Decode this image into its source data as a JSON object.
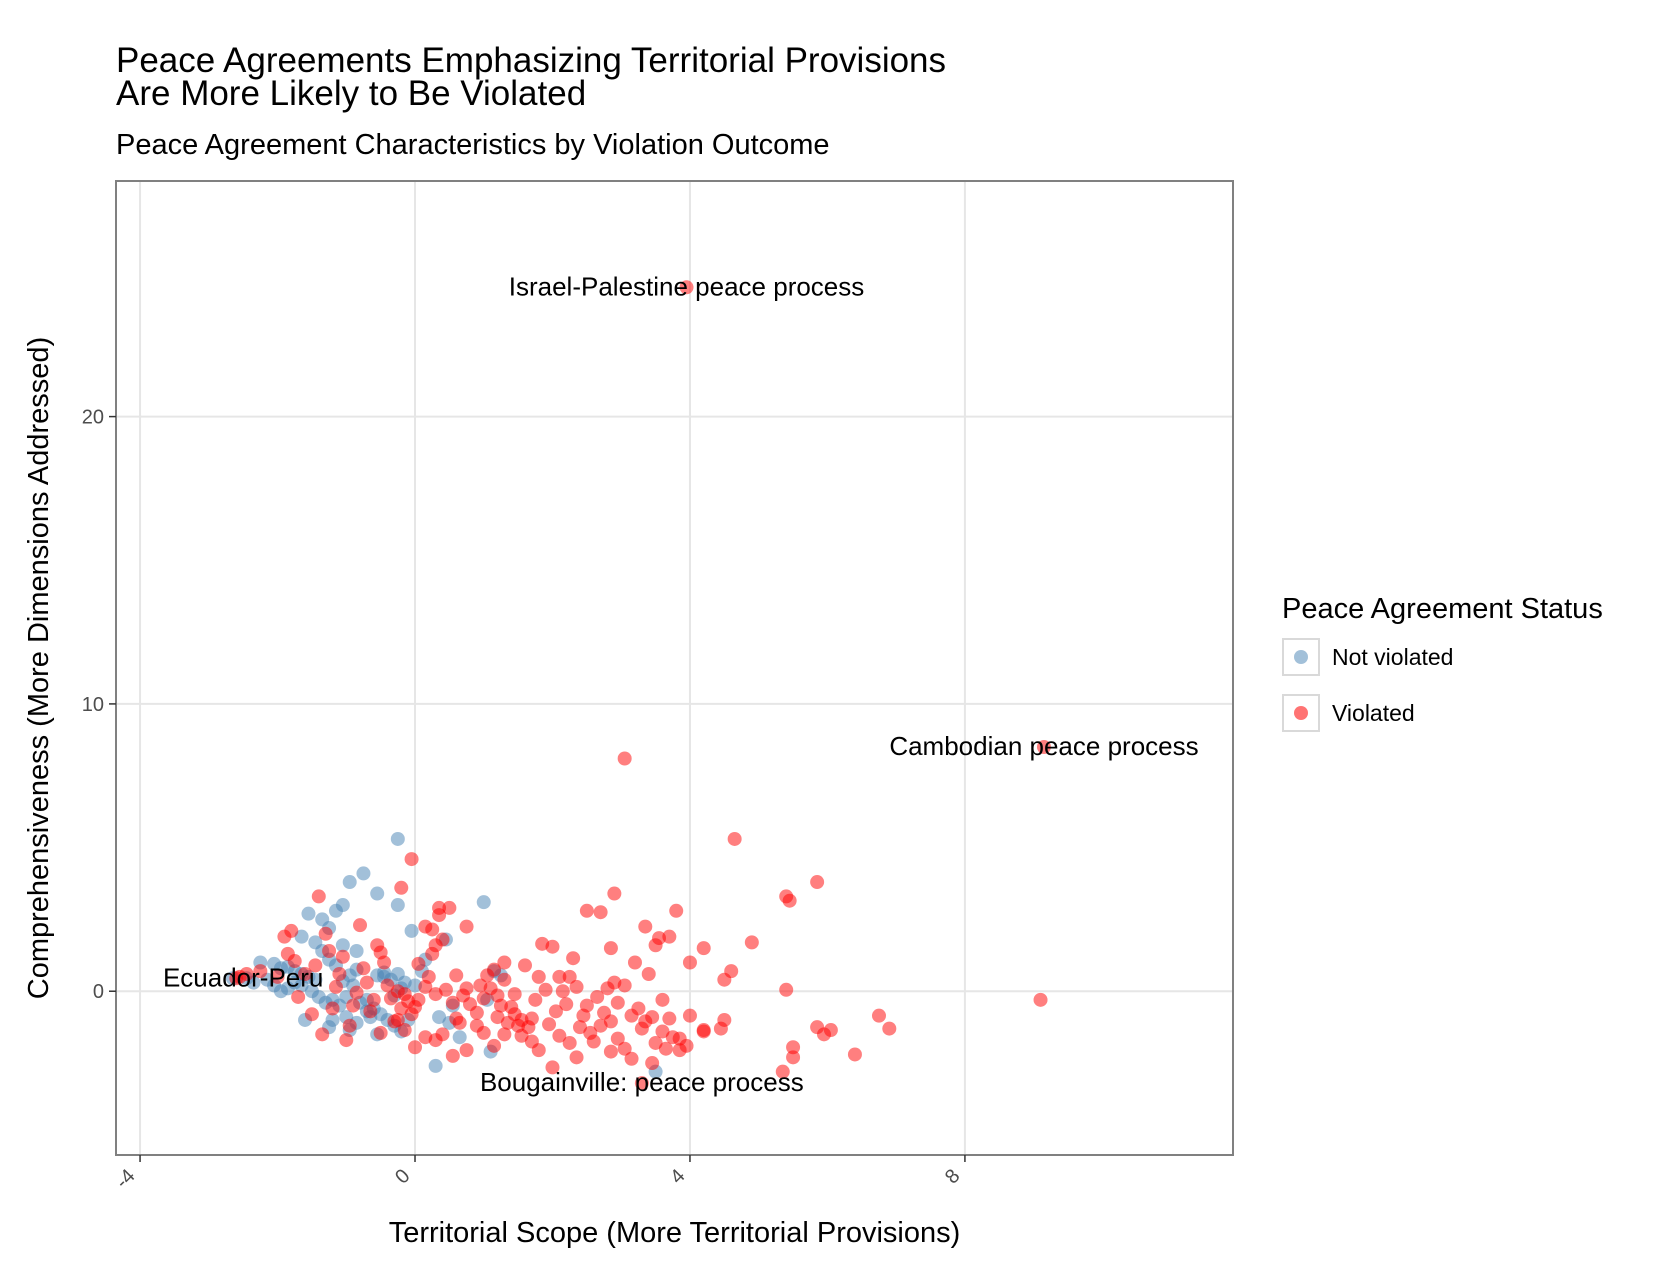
{
  "title_lines": [
    "Peace Agreements Emphasizing Territorial Provisions",
    "Are More Likely to Be Violated"
  ],
  "subtitle": "Peace Agreement Characteristics by Violation Outcome",
  "legend": {
    "title": "Peace Agreement Status",
    "items": [
      {
        "label": "Not violated",
        "color": "#4682B4"
      },
      {
        "label": "Violated",
        "color": "#FF0000"
      }
    ]
  },
  "chart_data": {
    "type": "scatter",
    "title": "Peace Agreements Emphasizing Territorial Provisions Are More Likely to Be Violated",
    "subtitle": "Peace Agreement Characteristics by Violation Outcome",
    "xlabel": "Territorial Scope (More Territorial Provisions)",
    "ylabel": "Comprehensiveness (More Dimensions Addressed)",
    "xlim": [
      -4.35,
      11.9
    ],
    "ylim": [
      -5.7,
      28.2
    ],
    "x_ticks": [
      -4,
      0,
      4,
      8
    ],
    "y_ticks": [
      0,
      10,
      20
    ],
    "x_tick_labels": [
      "-4",
      "0",
      "4",
      "8"
    ],
    "y_tick_labels": [
      "0",
      "10",
      "20"
    ],
    "grid": true,
    "legend_position": "right",
    "series": [
      {
        "name": "Not violated",
        "color": "#4682B4",
        "points": [
          [
            -0.25,
            5.3
          ],
          [
            -0.75,
            4.1
          ],
          [
            -0.95,
            3.8
          ],
          [
            -0.55,
            3.4
          ],
          [
            -1.55,
            2.7
          ],
          [
            -1.35,
            2.5
          ],
          [
            -1.15,
            2.8
          ],
          [
            -1.05,
            3.0
          ],
          [
            -0.25,
            3.0
          ],
          [
            1.0,
            3.1
          ],
          [
            -1.25,
            2.2
          ],
          [
            -1.65,
            1.9
          ],
          [
            -1.45,
            1.7
          ],
          [
            -1.05,
            1.6
          ],
          [
            -1.35,
            1.4
          ],
          [
            -1.25,
            1.1
          ],
          [
            -1.15,
            0.9
          ],
          [
            -0.05,
            2.1
          ],
          [
            -0.85,
            1.4
          ],
          [
            0.15,
            1.1
          ],
          [
            0.45,
            1.8
          ],
          [
            -2.25,
            1.0
          ],
          [
            -2.05,
            0.95
          ],
          [
            -1.95,
            0.8
          ],
          [
            -1.85,
            0.85
          ],
          [
            -1.75,
            0.7
          ],
          [
            -1.65,
            0.6
          ],
          [
            -1.55,
            0.5
          ],
          [
            -1.45,
            0.4
          ],
          [
            -2.65,
            0.45
          ],
          [
            -2.45,
            0.45
          ],
          [
            -2.35,
            0.3
          ],
          [
            -2.15,
            0.4
          ],
          [
            -2.05,
            0.2
          ],
          [
            -1.95,
            0.0
          ],
          [
            -1.85,
            0.1
          ],
          [
            -1.75,
            0.3
          ],
          [
            -1.65,
            0.2
          ],
          [
            -1.5,
            0.0
          ],
          [
            -1.4,
            -0.2
          ],
          [
            -1.3,
            -0.4
          ],
          [
            -1.2,
            -0.3
          ],
          [
            -1.1,
            -0.5
          ],
          [
            -1.0,
            -0.2
          ],
          [
            -0.9,
            0.2
          ],
          [
            -0.8,
            -0.4
          ],
          [
            -0.7,
            -0.7
          ],
          [
            -0.6,
            -0.6
          ],
          [
            -0.5,
            -0.8
          ],
          [
            -0.4,
            -1.0
          ],
          [
            -0.3,
            -1.2
          ],
          [
            -0.2,
            -1.4
          ],
          [
            -0.1,
            -1.0
          ],
          [
            -1.2,
            -1.0
          ],
          [
            -1.25,
            -1.25
          ],
          [
            -0.95,
            -1.35
          ],
          [
            -0.85,
            -1.1
          ],
          [
            -0.65,
            -0.9
          ],
          [
            -0.55,
            -1.5
          ],
          [
            -0.45,
            0.5
          ],
          [
            -0.35,
            0.4
          ],
          [
            -0.25,
            0.6
          ],
          [
            -0.15,
            0.3
          ],
          [
            0.0,
            0.2
          ],
          [
            0.1,
            0.7
          ],
          [
            -0.55,
            0.55
          ],
          [
            -0.45,
            0.65
          ],
          [
            -0.85,
            0.75
          ],
          [
            -0.95,
            0.55
          ],
          [
            -1.05,
            0.35
          ],
          [
            1.15,
            0.7
          ],
          [
            1.25,
            0.55
          ],
          [
            1.05,
            -0.3
          ],
          [
            0.3,
            -2.6
          ],
          [
            1.1,
            -2.1
          ],
          [
            3.5,
            -2.8
          ],
          [
            0.35,
            -0.9
          ],
          [
            0.5,
            -1.1
          ],
          [
            0.55,
            -0.5
          ],
          [
            0.65,
            -1.6
          ],
          [
            -1.6,
            -1.0
          ],
          [
            -1.0,
            -0.9
          ],
          [
            -0.7,
            -0.3
          ],
          [
            -0.3,
            -0.15
          ],
          [
            -0.2,
            0.1
          ]
        ]
      },
      {
        "name": "Violated",
        "color": "#FF0000",
        "points": [
          [
            3.95,
            24.5
          ],
          [
            9.15,
            8.5
          ],
          [
            9.1,
            -0.3
          ],
          [
            3.05,
            8.1
          ],
          [
            4.65,
            5.3
          ],
          [
            5.85,
            3.8
          ],
          [
            5.4,
            3.3
          ],
          [
            5.45,
            3.15
          ],
          [
            4.9,
            1.7
          ],
          [
            4.6,
            0.7
          ],
          [
            4.5,
            0.4
          ],
          [
            4.2,
            1.5
          ],
          [
            4.0,
            1.0
          ],
          [
            5.4,
            0.05
          ],
          [
            6.75,
            -0.85
          ],
          [
            6.9,
            -1.3
          ],
          [
            6.05,
            -1.35
          ],
          [
            5.85,
            -1.25
          ],
          [
            5.95,
            -1.5
          ],
          [
            6.4,
            -2.2
          ],
          [
            5.5,
            -1.95
          ],
          [
            5.5,
            -2.3
          ],
          [
            5.35,
            -2.8
          ],
          [
            4.5,
            -1.0
          ],
          [
            4.45,
            -1.3
          ],
          [
            4.2,
            -1.4
          ],
          [
            4.0,
            -0.85
          ],
          [
            3.95,
            -1.9
          ],
          [
            3.85,
            -1.65
          ],
          [
            3.7,
            -0.95
          ],
          [
            3.6,
            -1.4
          ],
          [
            3.5,
            -1.8
          ],
          [
            3.45,
            -2.5
          ],
          [
            3.3,
            -3.2
          ],
          [
            3.35,
            -1.05
          ],
          [
            3.4,
            0.6
          ],
          [
            3.6,
            -0.3
          ],
          [
            3.55,
            1.85
          ],
          [
            3.5,
            1.6
          ],
          [
            3.35,
            2.25
          ],
          [
            3.7,
            1.9
          ],
          [
            3.8,
            2.8
          ],
          [
            3.2,
            1.0
          ],
          [
            3.05,
            0.2
          ],
          [
            2.9,
            0.3
          ],
          [
            2.95,
            -0.4
          ],
          [
            2.85,
            1.5
          ],
          [
            2.9,
            3.4
          ],
          [
            2.7,
            2.75
          ],
          [
            2.5,
            2.8
          ],
          [
            2.3,
            1.15
          ],
          [
            2.25,
            0.5
          ],
          [
            2.15,
            0.0
          ],
          [
            2.05,
            -0.7
          ],
          [
            2.0,
            1.55
          ],
          [
            1.85,
            1.65
          ],
          [
            1.8,
            0.5
          ],
          [
            1.75,
            -0.3
          ],
          [
            1.7,
            -0.95
          ],
          [
            1.65,
            -1.25
          ],
          [
            1.55,
            -1.55
          ],
          [
            1.5,
            -1.2
          ],
          [
            1.45,
            -0.8
          ],
          [
            1.4,
            -0.55
          ],
          [
            1.35,
            -1.1
          ],
          [
            1.3,
            0.4
          ],
          [
            1.3,
            1.0
          ],
          [
            1.25,
            -0.5
          ],
          [
            1.2,
            -0.9
          ],
          [
            1.15,
            0.75
          ],
          [
            1.1,
            0.1
          ],
          [
            1.05,
            0.55
          ],
          [
            1.0,
            -0.25
          ],
          [
            0.9,
            -0.75
          ],
          [
            0.8,
            -0.45
          ],
          [
            0.7,
            -0.15
          ],
          [
            0.65,
            -1.1
          ],
          [
            0.6,
            -0.95
          ],
          [
            0.55,
            -0.4
          ],
          [
            0.5,
            2.9
          ],
          [
            0.75,
            2.25
          ],
          [
            0.35,
            2.9
          ],
          [
            0.35,
            2.65
          ],
          [
            0.4,
            1.8
          ],
          [
            0.25,
            2.15
          ],
          [
            0.3,
            1.6
          ],
          [
            0.15,
            2.25
          ],
          [
            0.2,
            0.5
          ],
          [
            0.15,
            0.15
          ],
          [
            0.05,
            -0.3
          ],
          [
            0.0,
            -0.55
          ],
          [
            -0.05,
            -0.8
          ],
          [
            -0.1,
            -0.35
          ],
          [
            -0.15,
            -0.1
          ],
          [
            -0.2,
            -0.6
          ],
          [
            -0.25,
            0.0
          ],
          [
            -0.3,
            -1.05
          ],
          [
            -0.35,
            -0.25
          ],
          [
            -0.4,
            0.2
          ],
          [
            -0.45,
            1.0
          ],
          [
            -0.5,
            1.35
          ],
          [
            -0.55,
            1.6
          ],
          [
            -0.6,
            -0.3
          ],
          [
            -0.65,
            -0.7
          ],
          [
            -0.7,
            0.3
          ],
          [
            -0.75,
            0.8
          ],
          [
            -0.8,
            2.3
          ],
          [
            -0.85,
            -0.05
          ],
          [
            -0.9,
            -0.5
          ],
          [
            -0.95,
            -1.2
          ],
          [
            -1.0,
            -1.7
          ],
          [
            -1.05,
            1.2
          ],
          [
            -1.1,
            0.6
          ],
          [
            -1.15,
            0.15
          ],
          [
            -1.2,
            -0.6
          ],
          [
            -1.25,
            1.4
          ],
          [
            -1.3,
            2.0
          ],
          [
            -1.35,
            -1.5
          ],
          [
            -1.4,
            3.3
          ],
          [
            -1.45,
            0.9
          ],
          [
            -1.5,
            -0.8
          ],
          [
            -1.6,
            0.6
          ],
          [
            -1.7,
            -0.2
          ],
          [
            -1.75,
            1.05
          ],
          [
            -1.8,
            2.1
          ],
          [
            -1.9,
            1.9
          ],
          [
            -1.85,
            1.3
          ],
          [
            -2.0,
            0.5
          ],
          [
            -2.25,
            0.7
          ],
          [
            -2.45,
            0.6
          ],
          [
            -2.55,
            0.5
          ],
          [
            -2.6,
            0.45
          ],
          [
            -0.2,
            3.6
          ],
          [
            -0.05,
            4.6
          ],
          [
            0.25,
            1.3
          ],
          [
            0.05,
            0.95
          ],
          [
            -0.5,
            -1.45
          ],
          [
            -0.25,
            -1.0
          ],
          [
            -0.15,
            -1.35
          ],
          [
            0.0,
            -1.95
          ],
          [
            0.15,
            -1.6
          ],
          [
            0.3,
            -1.7
          ],
          [
            0.4,
            -1.5
          ],
          [
            0.55,
            -2.25
          ],
          [
            0.75,
            -2.05
          ],
          [
            0.9,
            -1.2
          ],
          [
            1.0,
            -1.45
          ],
          [
            1.15,
            -1.9
          ],
          [
            1.3,
            -1.5
          ],
          [
            1.55,
            -1.0
          ],
          [
            1.7,
            -1.75
          ],
          [
            1.8,
            -2.05
          ],
          [
            2.0,
            -2.65
          ],
          [
            2.1,
            -1.55
          ],
          [
            2.25,
            -1.8
          ],
          [
            2.35,
            -2.3
          ],
          [
            2.4,
            -1.25
          ],
          [
            2.55,
            -1.45
          ],
          [
            2.6,
            -1.75
          ],
          [
            2.7,
            -1.2
          ],
          [
            2.85,
            -2.1
          ],
          [
            2.95,
            -1.65
          ],
          [
            3.05,
            -2.0
          ],
          [
            3.15,
            -2.35
          ],
          [
            3.3,
            -1.3
          ],
          [
            3.45,
            -0.9
          ],
          [
            3.65,
            -2.0
          ],
          [
            3.75,
            -1.6
          ],
          [
            3.85,
            -2.05
          ],
          [
            4.2,
            -1.35
          ],
          [
            2.1,
            0.5
          ],
          [
            2.35,
            0.15
          ],
          [
            2.5,
            -0.5
          ],
          [
            2.65,
            -0.2
          ],
          [
            2.75,
            -0.75
          ],
          [
            2.8,
            0.1
          ],
          [
            1.9,
            0.05
          ],
          [
            1.6,
            0.9
          ],
          [
            1.45,
            -0.1
          ],
          [
            1.2,
            -0.15
          ],
          [
            0.95,
            0.2
          ],
          [
            0.75,
            0.1
          ],
          [
            0.6,
            0.55
          ],
          [
            0.45,
            0.05
          ],
          [
            0.3,
            -0.1
          ],
          [
            2.2,
            -0.45
          ],
          [
            2.45,
            -0.85
          ],
          [
            1.95,
            -1.15
          ],
          [
            2.85,
            -1.05
          ],
          [
            3.25,
            -0.6
          ],
          [
            3.15,
            -0.85
          ]
        ]
      }
    ],
    "annotations": [
      {
        "text": "Israel-Palestine peace process",
        "x": 3.95,
        "y": 24.5
      },
      {
        "text": "Cambodian peace process",
        "x": 9.15,
        "y": 8.5
      },
      {
        "text": "Ecuador-Peru",
        "x": -2.5,
        "y": 0.45
      },
      {
        "text": "Bougainville: peace process",
        "x": 3.3,
        "y": -3.2
      }
    ]
  }
}
